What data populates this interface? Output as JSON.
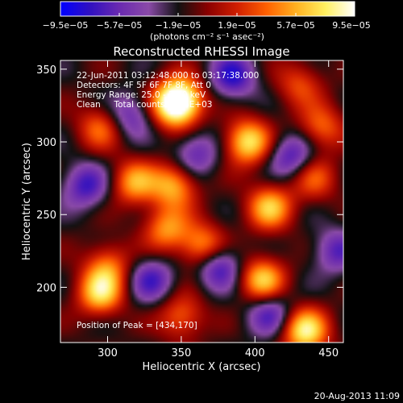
{
  "chart_data": {
    "type": "heatmap",
    "title": "Reconstructed RHESSI Image",
    "xlabel": "Heliocentric X (arcsec)",
    "ylabel": "Heliocentric Y (arcsec)",
    "xlim": [
      268,
      460
    ],
    "ylim": [
      162,
      356
    ],
    "x_ticks": [
      "300",
      "350",
      "400",
      "450"
    ],
    "x_tick_values": [
      300,
      350,
      400,
      450
    ],
    "y_ticks": [
      "200",
      "250",
      "300",
      "350"
    ],
    "y_tick_values": [
      200,
      250,
      300,
      350
    ],
    "colorbar": {
      "tick_labels": [
        "−9.5e−05",
        "−5.7e−05",
        "−1.9e−05",
        "1.9e−05",
        "5.7e−05",
        "9.5e−05"
      ],
      "range": [
        -9.5e-05,
        9.5e-05
      ],
      "unit_label": "(photons cm⁻² s⁻¹ asec⁻²)",
      "colormap": [
        "#0000ff",
        "#3010c0",
        "#6a2ab0",
        "#8a4aa8",
        "#111111",
        "#8a0000",
        "#d01e00",
        "#ff6000",
        "#ffb020",
        "#fff060",
        "#ffffff"
      ]
    },
    "annotations": [
      "22-Jun-2011 03:12:48.000 to 03:17:38.000",
      "Detectors: 4F 5F 6F 7F 8F, Att 0",
      "Energy Range: 25.0 - 50.0 keV",
      "Clean     Total counts: 8.26E+03"
    ],
    "peak_label": "Position of Peak = [434,170]",
    "peak": [
      434,
      170
    ],
    "sources": [
      {
        "x": 345,
        "y": 325,
        "v": 0.9
      },
      {
        "x": 350,
        "y": 330,
        "v": 0.8
      },
      {
        "x": 318,
        "y": 272,
        "v": 0.7
      },
      {
        "x": 345,
        "y": 270,
        "v": 0.75
      },
      {
        "x": 395,
        "y": 300,
        "v": 0.95
      },
      {
        "x": 410,
        "y": 255,
        "v": 0.8
      },
      {
        "x": 365,
        "y": 228,
        "v": 0.75
      },
      {
        "x": 340,
        "y": 240,
        "v": 0.65
      },
      {
        "x": 405,
        "y": 205,
        "v": 0.85
      },
      {
        "x": 434,
        "y": 170,
        "v": 1.0
      },
      {
        "x": 295,
        "y": 196,
        "v": 0.85
      },
      {
        "x": 300,
        "y": 215,
        "v": 0.55
      },
      {
        "x": 295,
        "y": 310,
        "v": 0.55
      },
      {
        "x": 445,
        "y": 310,
        "v": 0.55
      },
      {
        "x": 440,
        "y": 275,
        "v": 0.5
      },
      {
        "x": 350,
        "y": 180,
        "v": 0.55
      },
      {
        "x": 430,
        "y": 340,
        "v": 0.45
      },
      {
        "x": 285,
        "y": 270,
        "v": -0.6
      },
      {
        "x": 375,
        "y": 215,
        "v": -0.7
      },
      {
        "x": 330,
        "y": 205,
        "v": -0.55
      },
      {
        "x": 385,
        "y": 345,
        "v": -0.65
      },
      {
        "x": 425,
        "y": 290,
        "v": -0.6
      },
      {
        "x": 410,
        "y": 182,
        "v": -0.55
      },
      {
        "x": 315,
        "y": 318,
        "v": -0.5
      },
      {
        "x": 360,
        "y": 292,
        "v": -0.5
      },
      {
        "x": 455,
        "y": 225,
        "v": -0.5
      }
    ]
  },
  "footer": {
    "date": "20-Aug-2013 11:09"
  }
}
